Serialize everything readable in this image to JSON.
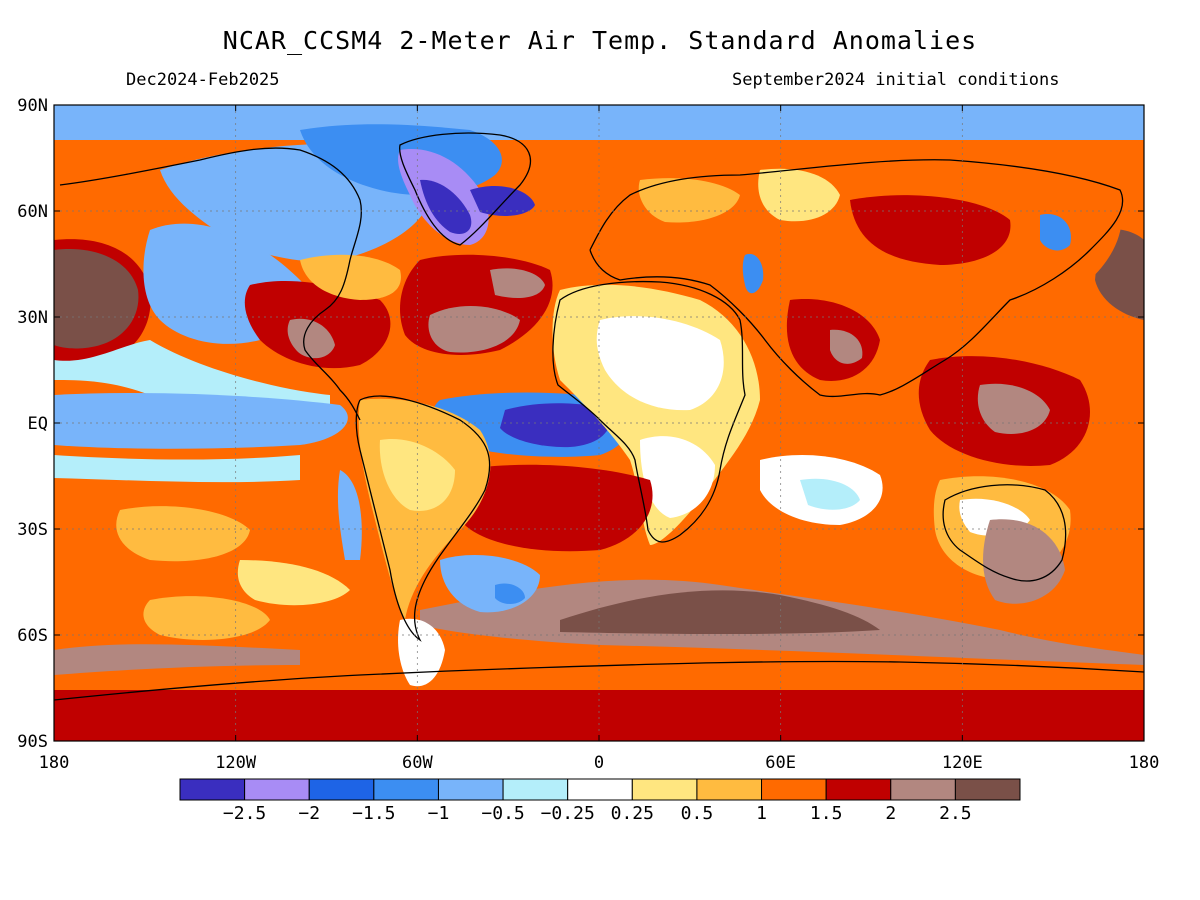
{
  "header": {
    "title": "NCAR_CCSM4 2-Meter Air Temp. Standard Anomalies",
    "period": "Dec2024-Feb2025",
    "init": "September2024 initial conditions"
  },
  "axes": {
    "lat_labels": [
      "90N",
      "60N",
      "30N",
      "EQ",
      "30S",
      "60S",
      "90S"
    ],
    "lat_values": [
      90,
      60,
      30,
      0,
      -30,
      -60,
      -90
    ],
    "lon_labels": [
      "180",
      "120W",
      "60W",
      "0",
      "60E",
      "120E",
      "180"
    ],
    "lon_values": [
      -180,
      -120,
      -60,
      0,
      60,
      120,
      180
    ]
  },
  "colorbar": {
    "colors": [
      "#3a2ebf",
      "#a88cf5",
      "#1e64e6",
      "#3c8ef2",
      "#78b4fa",
      "#b4eefa",
      "#ffffff",
      "#ffe680",
      "#ffbb40",
      "#ff6a00",
      "#c00000",
      "#b28780",
      "#7a5048"
    ],
    "tick_labels": [
      "-2.5",
      "-2",
      "-1.5",
      "-1",
      "-0.5",
      "-0.25",
      "0.25",
      "0.5",
      "1",
      "1.5",
      "2",
      "2.5"
    ]
  },
  "legend_colors": {
    "ocean_default": "#ff8a1a",
    "coastline": "#000000"
  }
}
